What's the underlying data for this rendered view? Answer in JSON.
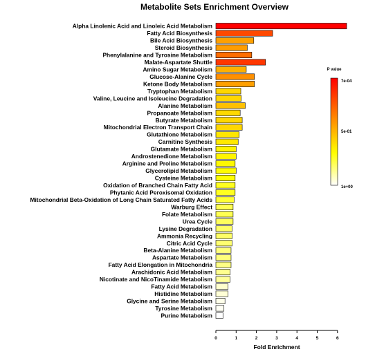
{
  "chart_data": {
    "type": "bar",
    "orientation": "horizontal",
    "title": "Metabolite Sets Enrichment Overview",
    "xlabel": "Fold Enrichment",
    "ylabel": "",
    "xlim": [
      0,
      6.2
    ],
    "xticks": [
      "0",
      "1",
      "2",
      "3",
      "4",
      "5",
      "6"
    ],
    "grid": false,
    "categories": [
      "Alpha Linolenic Acid and Linoleic Acid Metabolism",
      "Fatty Acid Biosynthesis",
      "Bile Acid Biosynthesis",
      "Steroid Biosynthesis",
      "Phenylalanine and Tyrosine Metabolism",
      "Malate-Aspartate Shuttle",
      "Amino Sugar Metabolism",
      "Glucose-Alanine Cycle",
      "Ketone Body Metabolism",
      "Tryptophan Metabolism",
      "Valine, Leucine and Isoleucine Degradation",
      "Alanine Metabolism",
      "Propanoate Metabolism",
      "Butyrate Metabolism",
      "Mitochondrial Electron Transport Chain",
      "Glutathione Metabolism",
      "Carnitine Synthesis",
      "Glutamate Metabolism",
      "Androstenedione Metabolism",
      "Arginine and Proline Metabolism",
      "Glycerolipid Metabolism",
      "Cysteine Metabolism",
      "Oxidation of Branched Chain Fatty Acid",
      "Phytanic Acid Peroxisomal Oxidation",
      "Mitochondrial Beta-Oxidation of Long Chain Saturated Fatty Acids",
      "Warburg Effect",
      "Folate Metabolism",
      "Urea Cycle",
      "Lysine Degradation",
      "Ammonia Recycling",
      "Citric Acid Cycle",
      "Beta-Alanine Metabolism",
      "Aspartate Metabolism",
      "Fatty Acid Elongation in Mitochondria",
      "Arachidonic Acid Metabolism",
      "Nicotinate and NicoTinamide Metabolism",
      "Fatty Acid Metabolism",
      "Histidine Metabolism",
      "Glycine and Serine Metabolism",
      "Tyrosine Metabolism",
      "Purine Metabolism"
    ],
    "values": [
      6.45,
      2.8,
      1.87,
      1.55,
      1.77,
      2.45,
      1.5,
      1.9,
      1.9,
      1.23,
      1.25,
      1.45,
      1.2,
      1.3,
      1.3,
      1.15,
      1.1,
      1.0,
      1.0,
      0.95,
      1.0,
      0.95,
      0.95,
      0.95,
      0.9,
      0.85,
      0.85,
      0.85,
      0.8,
      0.8,
      0.8,
      0.75,
      0.75,
      0.75,
      0.7,
      0.7,
      0.6,
      0.6,
      0.45,
      0.4,
      0.35
    ],
    "color_scale": [
      0.0,
      0.2,
      0.45,
      0.44,
      0.3,
      0.15,
      0.5,
      0.4,
      0.45,
      0.62,
      0.62,
      0.55,
      0.63,
      0.62,
      0.62,
      0.67,
      0.68,
      0.72,
      0.72,
      0.73,
      0.74,
      0.75,
      0.78,
      0.78,
      0.8,
      0.83,
      0.83,
      0.84,
      0.85,
      0.85,
      0.86,
      0.87,
      0.87,
      0.88,
      0.89,
      0.9,
      0.95,
      0.96,
      0.98,
      0.99,
      1.0
    ],
    "legend": {
      "title": "P value",
      "placement": "right",
      "labels": [
        "7e-04",
        "5e-01",
        "1e+00"
      ],
      "colors": [
        "#ff0000",
        "#ff8000",
        "#ffff00",
        "#ffffff"
      ]
    }
  }
}
